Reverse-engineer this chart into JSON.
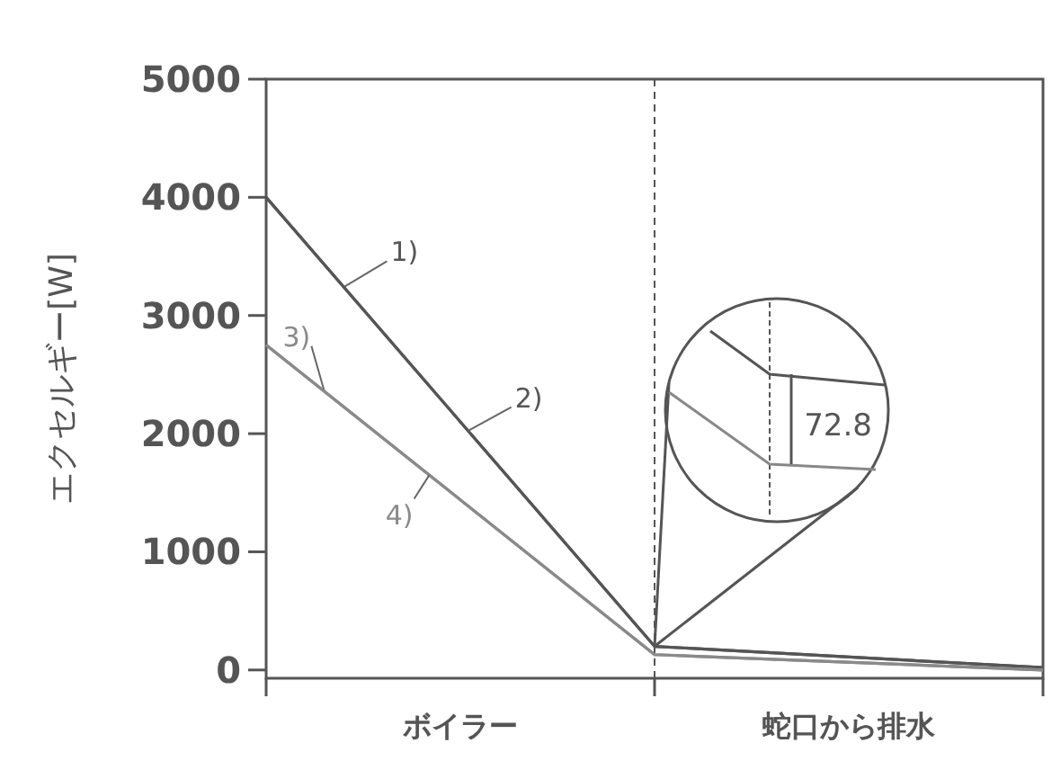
{
  "chart_data": {
    "type": "line",
    "ylabel": "エクセルギー[W]",
    "categories": [
      null,
      null,
      null
    ],
    "ylim": [
      -70,
      5000
    ],
    "yticks": [
      0,
      1000,
      2000,
      3000,
      4000,
      5000
    ],
    "series": [
      {
        "name": "1)",
        "color": "#555555",
        "values": [
          4000,
          200,
          20
        ]
      },
      {
        "name": "2)",
        "color": "#555555",
        "values": [
          4000,
          200,
          20
        ]
      },
      {
        "name": "3)",
        "color": "#8a8a8a",
        "values": [
          2750,
          130,
          0
        ]
      },
      {
        "name": "4)",
        "color": "#8a8a8a",
        "values": [
          2750,
          130,
          0
        ]
      }
    ],
    "annotations": [
      "ボイラー",
      "蛇口から排水",
      "72.8"
    ],
    "grid": false,
    "legend": false,
    "marker": "none",
    "line_style": "solid"
  }
}
